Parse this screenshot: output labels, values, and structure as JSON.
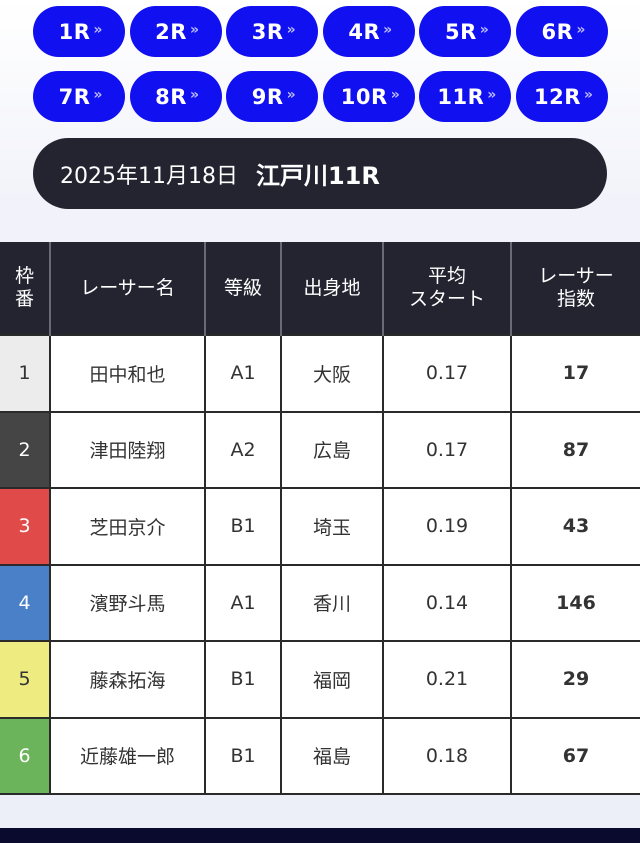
{
  "race_buttons": [
    {
      "label": "1R"
    },
    {
      "label": "2R"
    },
    {
      "label": "3R"
    },
    {
      "label": "4R"
    },
    {
      "label": "5R"
    },
    {
      "label": "6R"
    },
    {
      "label": "7R"
    },
    {
      "label": "8R"
    },
    {
      "label": "9R"
    },
    {
      "label": "10R"
    },
    {
      "label": "11R"
    },
    {
      "label": "12R"
    }
  ],
  "button_icon": "double-chevron-right-icon",
  "button_chevron": "»",
  "header": {
    "date": "2025年11月18日",
    "race": "江戸川11R"
  },
  "colors": {
    "accent": "#1010f0",
    "dark": "#242431",
    "waku": [
      "#ececec",
      "#454545",
      "#e04a48",
      "#4a80c8",
      "#eeec80",
      "#6cb45c"
    ]
  },
  "table": {
    "headers": {
      "waku": [
        "枠",
        "番"
      ],
      "name": "レーサー名",
      "grade": "等級",
      "hometown": "出身地",
      "avg_start": [
        "平均",
        "スタート"
      ],
      "index": [
        "レーサー",
        "指数"
      ]
    },
    "rows": [
      {
        "waku": "1",
        "name": "田中和也",
        "grade": "A1",
        "hometown": "大阪",
        "avg_start": "0.17",
        "index": "17"
      },
      {
        "waku": "2",
        "name": "津田陸翔",
        "grade": "A2",
        "hometown": "広島",
        "avg_start": "0.17",
        "index": "87"
      },
      {
        "waku": "3",
        "name": "芝田京介",
        "grade": "B1",
        "hometown": "埼玉",
        "avg_start": "0.19",
        "index": "43"
      },
      {
        "waku": "4",
        "name": "濱野斗馬",
        "grade": "A1",
        "hometown": "香川",
        "avg_start": "0.14",
        "index": "146"
      },
      {
        "waku": "5",
        "name": "藤森拓海",
        "grade": "B1",
        "hometown": "福岡",
        "avg_start": "0.21",
        "index": "29"
      },
      {
        "waku": "6",
        "name": "近藤雄一郎",
        "grade": "B1",
        "hometown": "福島",
        "avg_start": "0.18",
        "index": "67"
      }
    ]
  }
}
